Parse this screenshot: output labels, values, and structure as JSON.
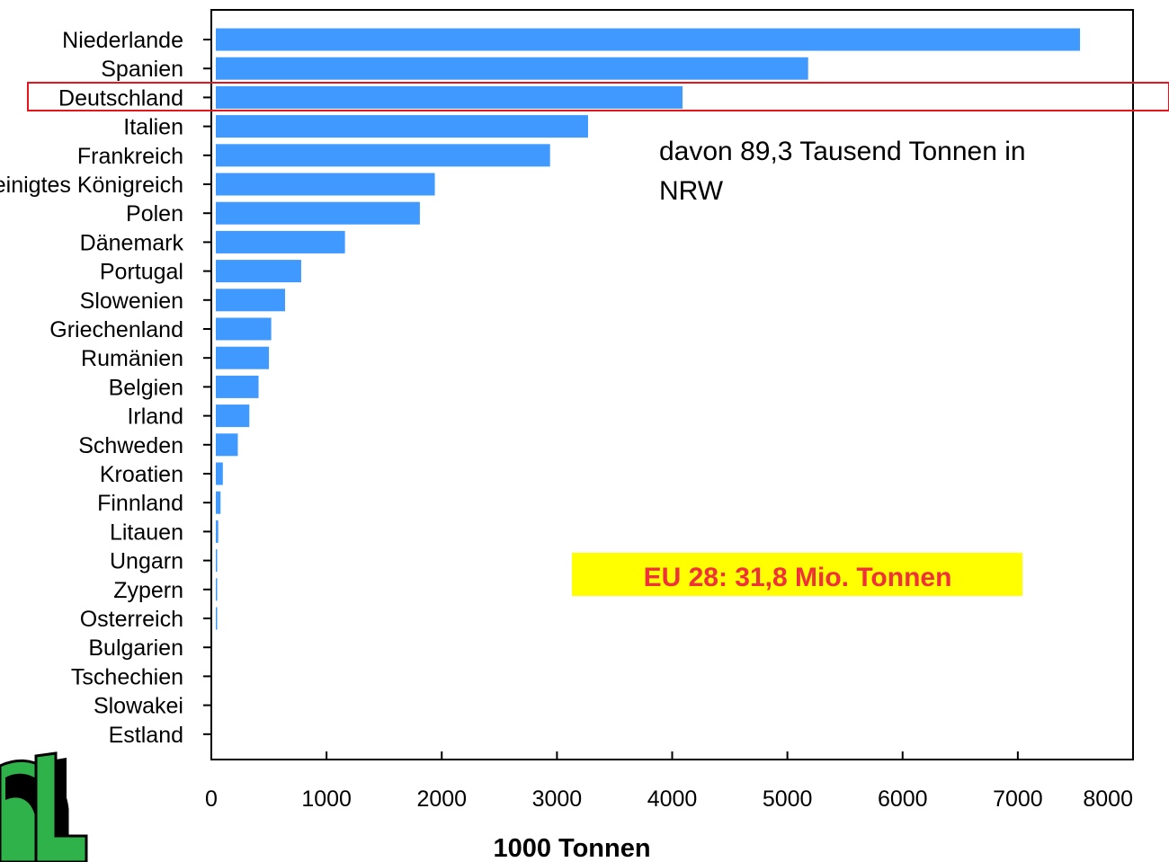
{
  "chart_data": {
    "type": "bar",
    "orientation": "horizontal",
    "categories": [
      "Niederlande",
      "Spanien",
      "Deutschland",
      "Italien",
      "Frankreich",
      "Vereinigtes Königreich",
      "Polen",
      "Dänemark",
      "Portugal",
      "Slowenien",
      "Griechenland",
      "Rumänien",
      "Belgien",
      "Irland",
      "Schweden",
      "Kroatien",
      "Finnland",
      "Litauen",
      "Ungarn",
      "Zypern",
      "Osterreich",
      "Bulgarien",
      "Tschechien",
      "Slowakei",
      "Estland"
    ],
    "values": [
      7540,
      5180,
      4090,
      3270,
      2940,
      1940,
      1810,
      1160,
      780,
      640,
      520,
      500,
      410,
      330,
      230,
      100,
      80,
      60,
      50,
      30,
      15,
      0,
      0,
      0,
      0
    ],
    "xlabel": "1000 Tonnen",
    "xlim": [
      0,
      8000
    ],
    "xticks": [
      0,
      1000,
      2000,
      3000,
      4000,
      5000,
      6000,
      7000,
      8000
    ],
    "grid": false,
    "highlight_category": "Deutschland",
    "annotations": {
      "note": "davon 89,3 Tausend Tonnen in NRW",
      "summary": "EU 28: 31,8 Mio. Tonnen"
    },
    "colors": {
      "bar": "#4099ff",
      "highlight_box": "#e8141c",
      "summary_bg": "#ffff00",
      "summary_text": "#f0303a"
    }
  },
  "logo": {
    "name": "lwk-logo-icon"
  }
}
